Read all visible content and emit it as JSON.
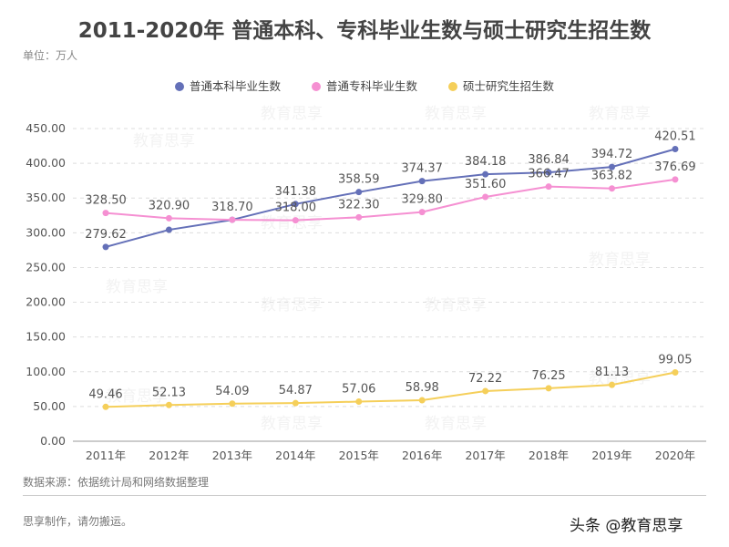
{
  "title": "2011-2020年 普通本科、专科毕业生数与硕士研究生招生数",
  "unit": "单位：万人",
  "source": "数据来源：依据统计局和网络数据整理",
  "made_by": "思享制作，请勿搬运。",
  "brand": "头条 @教育思享",
  "watermark": "教育思享",
  "chart_data": {
    "type": "line",
    "categories": [
      "2011年",
      "2012年",
      "2013年",
      "2014年",
      "2015年",
      "2016年",
      "2017年",
      "2018年",
      "2019年",
      "2020年"
    ],
    "ylim": [
      0,
      450
    ],
    "yticks": [
      "0.00",
      "50.00",
      "100.00",
      "150.00",
      "200.00",
      "250.00",
      "300.00",
      "350.00",
      "400.00",
      "450.00"
    ],
    "grid": true,
    "legend_position": "top",
    "series": [
      {
        "name": "普通本科毕业生数",
        "color": "#6470b8",
        "values": [
          279.62,
          304.3,
          318.7,
          341.38,
          358.59,
          374.37,
          384.18,
          386.84,
          394.72,
          420.51
        ],
        "labels": [
          "279.62",
          null,
          "318.70",
          "341.38",
          "358.59",
          "374.37",
          "384.18",
          "386.84",
          "394.72",
          "420.51"
        ]
      },
      {
        "name": "普通专科毕业生数",
        "color": "#f590d2",
        "values": [
          328.5,
          320.9,
          318.7,
          318.0,
          322.3,
          329.8,
          351.6,
          366.47,
          363.82,
          376.69
        ],
        "labels": [
          "328.50",
          "320.90",
          null,
          "318.00",
          "322.30",
          "329.80",
          "351.60",
          "366.47",
          "363.82",
          "376.69"
        ]
      },
      {
        "name": "硕士研究生招生数",
        "color": "#f5cf5a",
        "values": [
          49.46,
          52.13,
          54.09,
          54.87,
          57.06,
          58.98,
          72.22,
          76.25,
          81.13,
          99.05
        ],
        "labels": [
          "49.46",
          "52.13",
          "54.09",
          "54.87",
          "57.06",
          "58.98",
          "72.22",
          "76.25",
          "81.13",
          "99.05"
        ]
      }
    ]
  }
}
